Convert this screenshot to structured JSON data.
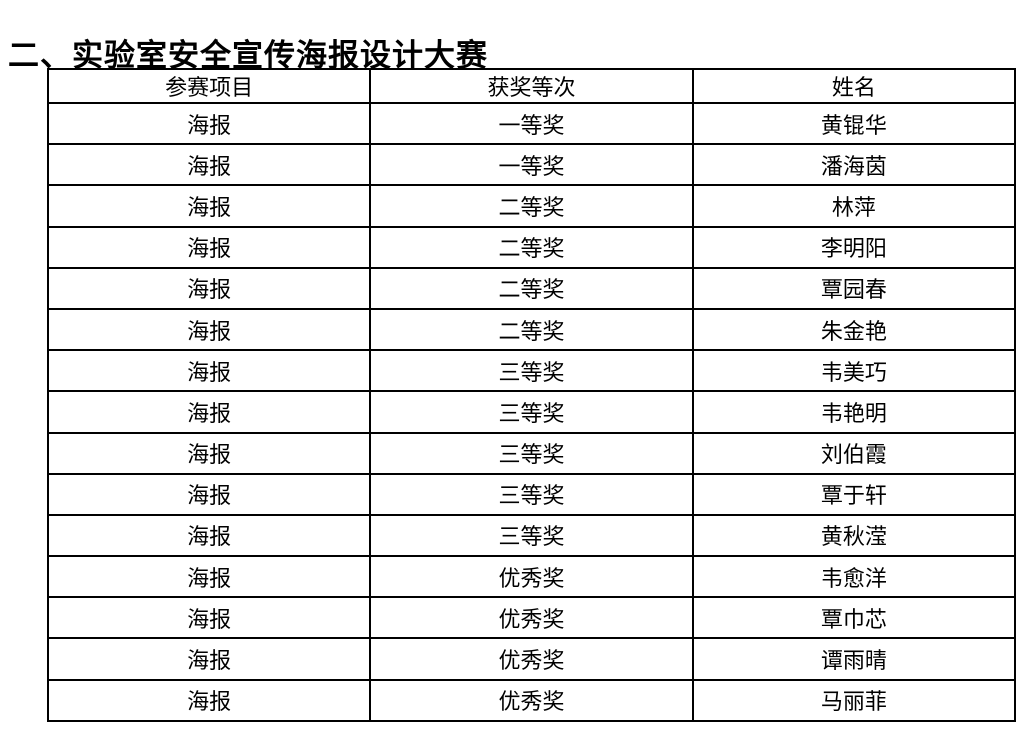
{
  "title": "二、实验室安全宣传海报设计大赛",
  "table": {
    "headers": [
      "参赛项目",
      "获奖等次",
      "姓名"
    ],
    "cell_names": [
      "table-cell-project",
      "table-cell-award-level",
      "table-cell-name"
    ],
    "rows": [
      [
        "海报",
        "一等奖",
        "黄锟华"
      ],
      [
        "海报",
        "一等奖",
        "潘海茵"
      ],
      [
        "海报",
        "二等奖",
        "林萍"
      ],
      [
        "海报",
        "二等奖",
        "李明阳"
      ],
      [
        "海报",
        "二等奖",
        "覃园春"
      ],
      [
        "海报",
        "二等奖",
        "朱金艳"
      ],
      [
        "海报",
        "三等奖",
        "韦美巧"
      ],
      [
        "海报",
        "三等奖",
        "韦艳明"
      ],
      [
        "海报",
        "三等奖",
        "刘伯霞"
      ],
      [
        "海报",
        "三等奖",
        "覃于轩"
      ],
      [
        "海报",
        "三等奖",
        "黄秋滢"
      ],
      [
        "海报",
        "优秀奖",
        "韦愈洋"
      ],
      [
        "海报",
        "优秀奖",
        "覃巾芯"
      ],
      [
        "海报",
        "优秀奖",
        "谭雨晴"
      ],
      [
        "海报",
        "优秀奖",
        "马丽菲"
      ]
    ],
    "colors": {
      "text": "#000000",
      "border": "#000000",
      "background": "#ffffff"
    }
  }
}
